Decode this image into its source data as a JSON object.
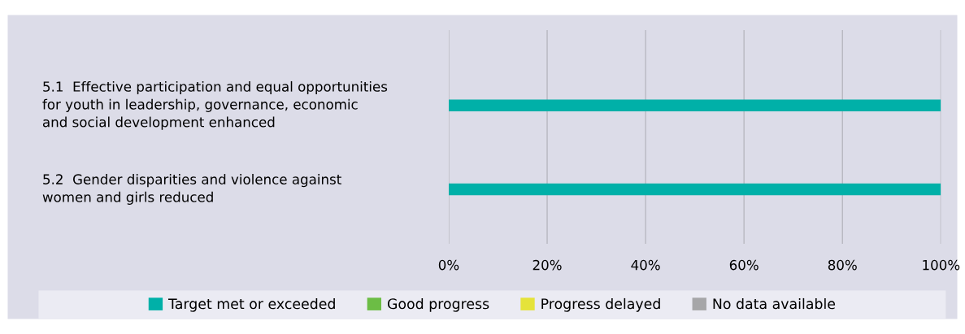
{
  "chart_data": {
    "type": "bar",
    "orientation": "horizontal",
    "categories": [
      "5.1  Effective participation and equal opportunities\nfor youth in leadership, governance, economic\nand social development enhanced",
      "5.2  Gender disparities and violence against\nwomen and girls reduced"
    ],
    "series": [
      {
        "name": "Target met or exceeded",
        "color": "#00b0a8",
        "values": [
          100,
          100
        ]
      },
      {
        "name": "Good progress",
        "color": "#6cbd45",
        "values": [
          null,
          null
        ]
      },
      {
        "name": "Progress delayed",
        "color": "#e5e33a",
        "values": [
          null,
          null
        ]
      },
      {
        "name": "No data available",
        "color": "#a6a6a8",
        "values": [
          null,
          null
        ]
      }
    ],
    "xlim": [
      0,
      100
    ],
    "xticks": [
      {
        "value": 0,
        "label": "0%"
      },
      {
        "value": 20,
        "label": "20%"
      },
      {
        "value": 40,
        "label": "40%"
      },
      {
        "value": 60,
        "label": "60%"
      },
      {
        "value": 80,
        "label": "80%"
      },
      {
        "value": 100,
        "label": "100%"
      }
    ],
    "grid": "x",
    "legend": "bottom"
  }
}
